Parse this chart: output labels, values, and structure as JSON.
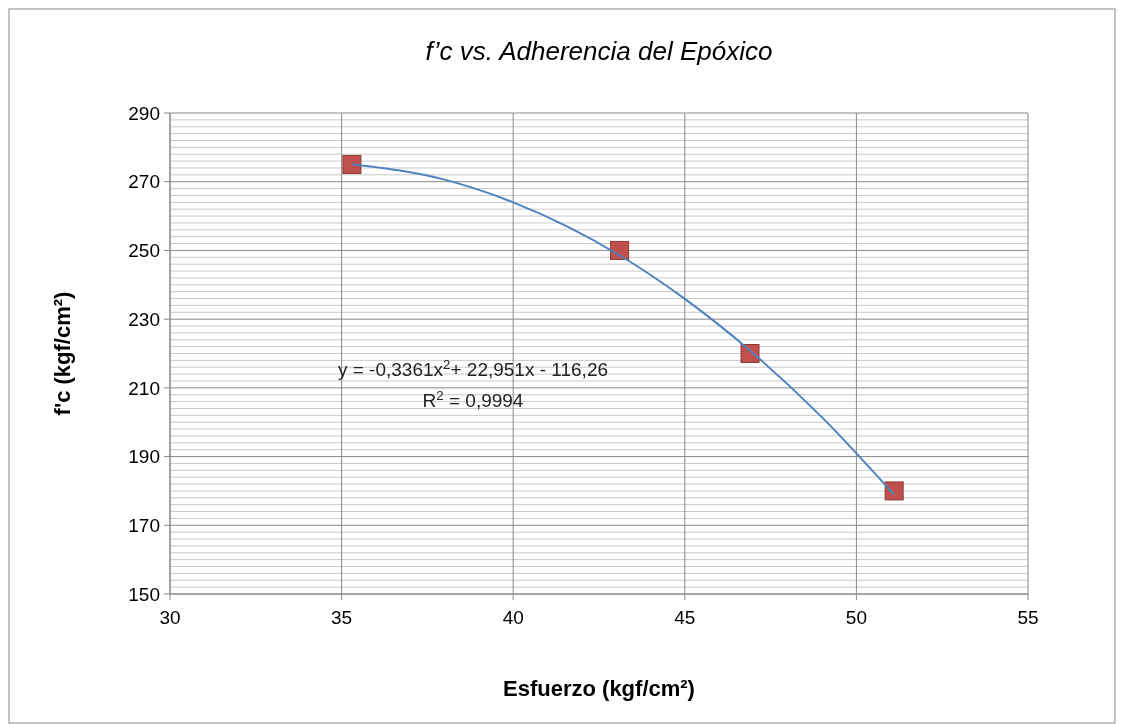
{
  "chart_data": {
    "type": "scatter",
    "title": "f’c vs. Adherencia del Epóxico",
    "xlabel": "Esfuerzo (kgf/cm²)",
    "ylabel": "f'c (kgf/cm²)",
    "xlim": [
      30,
      55
    ],
    "xticks": [
      30,
      35,
      40,
      45,
      50,
      55
    ],
    "ylim": [
      150,
      290
    ],
    "yticks": [
      150,
      170,
      190,
      210,
      230,
      250,
      270,
      290
    ],
    "grid": true,
    "marker": "square",
    "series": [
      {
        "color": "#c0504d",
        "x": [
          35.3,
          43.1,
          46.9,
          51.1
        ],
        "values": [
          275,
          250,
          220,
          180
        ]
      },
      {
        "type": "line",
        "color": "#4f81bd",
        "marker": "none",
        "x": [
          35.3,
          38,
          40,
          43.1,
          45,
          47,
          49,
          51.1
        ],
        "values": [
          275.1,
          270.6,
          264.0,
          248.6,
          235.9,
          220.0,
          201.4,
          178.9
        ]
      }
    ],
    "annotations": [
      "y = -0,3361x$^{2}$+ 22,951x - 116,26",
      "R$^{2}$ = 0,9994"
    ]
  }
}
